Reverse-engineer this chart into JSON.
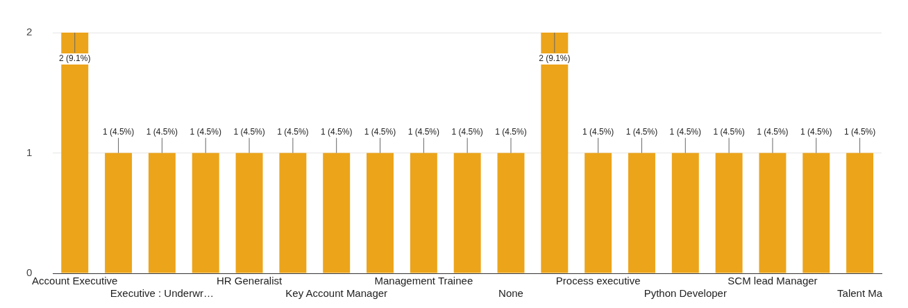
{
  "chart_data": {
    "type": "bar",
    "categories": [
      "Account Executive",
      null,
      "Executive : Underwr…",
      null,
      "HR Generalist",
      null,
      "Key Account Manager",
      null,
      "Management Trainee",
      null,
      "None",
      null,
      "Process executive",
      null,
      "Python Developer",
      null,
      "SCM lead Manager",
      null,
      "Talent Ma"
    ],
    "values": [
      2,
      1,
      1,
      1,
      1,
      1,
      1,
      1,
      1,
      1,
      1,
      2,
      1,
      1,
      1,
      1,
      1,
      1,
      1
    ],
    "value_labels": [
      "2 (9.1%)",
      "1 (4.5%)",
      "1 (4.5%)",
      "1 (4.5%)",
      "1 (4.5%)",
      "1 (4.5%)",
      "1 (4.5%)",
      "1 (4.5%)",
      "1 (4.5%)",
      "1 (4.5%)",
      "1 (4.5%)",
      "2 (9.1%)",
      "1 (4.5%)",
      "1 (4.5%)",
      "1 (4.5%)",
      "1 (4.5%)",
      "1 (4.5%)",
      "1 (4.5%)",
      "1 (4.5%)"
    ],
    "color": "#eca41a",
    "ylim": [
      0,
      2
    ],
    "yticks": [
      0,
      1,
      2
    ],
    "grid": "y",
    "legend": false
  }
}
